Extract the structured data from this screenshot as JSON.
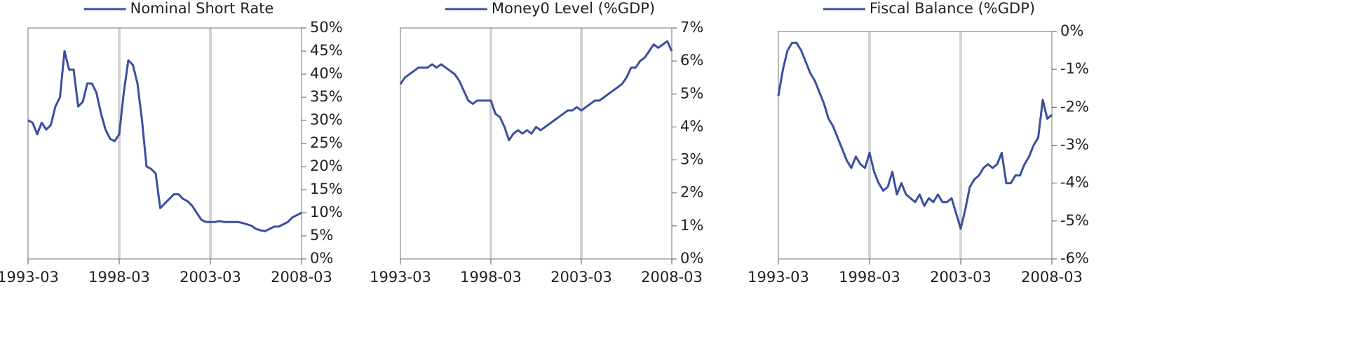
{
  "chart_data": [
    {
      "type": "line",
      "x": [
        "1993-03",
        "1993-06",
        "1993-09",
        "1993-12",
        "1994-03",
        "1994-06",
        "1994-09",
        "1994-12",
        "1995-03",
        "1995-06",
        "1995-09",
        "1995-12",
        "1996-03",
        "1996-06",
        "1996-09",
        "1996-12",
        "1997-03",
        "1997-06",
        "1997-09",
        "1997-12",
        "1998-03",
        "1998-06",
        "1998-09",
        "1998-12",
        "1999-03",
        "1999-06",
        "1999-09",
        "1999-12",
        "2000-03",
        "2000-06",
        "2000-09",
        "2000-12",
        "2001-03",
        "2001-06",
        "2001-09",
        "2001-12",
        "2002-03",
        "2002-06",
        "2002-09",
        "2002-12",
        "2003-03",
        "2003-06",
        "2003-09",
        "2003-12",
        "2004-03",
        "2004-06",
        "2004-09",
        "2004-12",
        "2005-03",
        "2005-06",
        "2005-09",
        "2005-12",
        "2006-03",
        "2006-06",
        "2006-09",
        "2006-12",
        "2007-03",
        "2007-06",
        "2007-09",
        "2007-12",
        "2008-03"
      ],
      "series": [
        {
          "name": "Nominal Short Rate",
          "color": "#3a4fa0",
          "values": [
            30,
            29.5,
            27,
            29.5,
            28,
            29,
            33,
            35,
            45,
            41,
            41,
            33,
            34,
            38,
            38,
            36,
            31.5,
            28,
            26,
            25.5,
            27,
            36,
            43,
            42,
            38,
            30,
            20,
            19.5,
            18.5,
            11,
            12,
            13,
            14,
            14,
            13,
            12.5,
            11.5,
            10,
            8.5,
            8,
            8,
            8,
            8.2,
            8,
            8,
            8,
            8,
            7.8,
            7.5,
            7.2,
            6.5,
            6.2,
            6,
            6.5,
            7,
            7,
            7.5,
            8,
            9,
            9.5,
            10
          ]
        }
      ],
      "xlim": [
        "1993-03",
        "2008-03"
      ],
      "xticks": [
        "1993-03",
        "1998-03",
        "2003-03",
        "2008-03"
      ],
      "reference_lines": [
        "1998-03",
        "2003-03"
      ],
      "ylim": [
        0,
        50
      ],
      "yticks": [
        {
          "value": 0,
          "label": "0%"
        },
        {
          "value": 5,
          "label": "5%"
        },
        {
          "value": 10,
          "label": "10%"
        },
        {
          "value": 15,
          "label": "15%"
        },
        {
          "value": 20,
          "label": "20%"
        },
        {
          "value": 25,
          "label": "25%"
        },
        {
          "value": 30,
          "label": "30%"
        },
        {
          "value": 35,
          "label": "35%"
        },
        {
          "value": 40,
          "label": "40%"
        },
        {
          "value": 45,
          "label": "45%"
        },
        {
          "value": 50,
          "label": "50%"
        }
      ]
    },
    {
      "type": "line",
      "x": [
        "1993-03",
        "1993-06",
        "1993-09",
        "1993-12",
        "1994-03",
        "1994-06",
        "1994-09",
        "1994-12",
        "1995-03",
        "1995-06",
        "1995-09",
        "1995-12",
        "1996-03",
        "1996-06",
        "1996-09",
        "1996-12",
        "1997-03",
        "1997-06",
        "1997-09",
        "1997-12",
        "1998-03",
        "1998-06",
        "1998-09",
        "1998-12",
        "1999-03",
        "1999-06",
        "1999-09",
        "1999-12",
        "2000-03",
        "2000-06",
        "2000-09",
        "2000-12",
        "2001-03",
        "2001-06",
        "2001-09",
        "2001-12",
        "2002-03",
        "2002-06",
        "2002-09",
        "2002-12",
        "2003-03",
        "2003-06",
        "2003-09",
        "2003-12",
        "2004-03",
        "2004-06",
        "2004-09",
        "2004-12",
        "2005-03",
        "2005-06",
        "2005-09",
        "2005-12",
        "2006-03",
        "2006-06",
        "2006-09",
        "2006-12",
        "2007-03",
        "2007-06",
        "2007-09",
        "2007-12",
        "2008-03"
      ],
      "series": [
        {
          "name": "Money0 Level (%GDP)",
          "color": "#3a4fa0",
          "values": [
            5.3,
            5.5,
            5.6,
            5.7,
            5.8,
            5.8,
            5.8,
            5.9,
            5.8,
            5.9,
            5.8,
            5.7,
            5.6,
            5.4,
            5.1,
            4.8,
            4.7,
            4.8,
            4.8,
            4.8,
            4.8,
            4.4,
            4.3,
            4.0,
            3.6,
            3.8,
            3.9,
            3.8,
            3.9,
            3.8,
            4.0,
            3.9,
            4.0,
            4.1,
            4.2,
            4.3,
            4.4,
            4.5,
            4.5,
            4.6,
            4.5,
            4.6,
            4.7,
            4.8,
            4.8,
            4.9,
            5.0,
            5.1,
            5.2,
            5.3,
            5.5,
            5.8,
            5.8,
            6.0,
            6.1,
            6.3,
            6.5,
            6.4,
            6.5,
            6.6,
            6.3
          ]
        }
      ],
      "xlim": [
        "1993-03",
        "2008-03"
      ],
      "xticks": [
        "1993-03",
        "1998-03",
        "2003-03",
        "2008-03"
      ],
      "reference_lines": [
        "1998-03",
        "2003-03"
      ],
      "ylim": [
        0,
        7
      ],
      "yticks": [
        {
          "value": 0,
          "label": "0%"
        },
        {
          "value": 1,
          "label": "1%"
        },
        {
          "value": 2,
          "label": "2%"
        },
        {
          "value": 3,
          "label": "3%"
        },
        {
          "value": 4,
          "label": "4%"
        },
        {
          "value": 5,
          "label": "5%"
        },
        {
          "value": 6,
          "label": "6%"
        },
        {
          "value": 7,
          "label": "7%"
        }
      ]
    },
    {
      "type": "line",
      "x": [
        "1993-03",
        "1993-06",
        "1993-09",
        "1993-12",
        "1994-03",
        "1994-06",
        "1994-09",
        "1994-12",
        "1995-03",
        "1995-06",
        "1995-09",
        "1995-12",
        "1996-03",
        "1996-06",
        "1996-09",
        "1996-12",
        "1997-03",
        "1997-06",
        "1997-09",
        "1997-12",
        "1998-03",
        "1998-06",
        "1998-09",
        "1998-12",
        "1999-03",
        "1999-06",
        "1999-09",
        "1999-12",
        "2000-03",
        "2000-06",
        "2000-09",
        "2000-12",
        "2001-03",
        "2001-06",
        "2001-09",
        "2001-12",
        "2002-03",
        "2002-06",
        "2002-09",
        "2002-12",
        "2003-03",
        "2003-06",
        "2003-09",
        "2003-12",
        "2004-03",
        "2004-06",
        "2004-09",
        "2004-12",
        "2005-03",
        "2005-06",
        "2005-09",
        "2005-12",
        "2006-03",
        "2006-06",
        "2006-09",
        "2006-12",
        "2007-03",
        "2007-06",
        "2007-09",
        "2007-12",
        "2008-03"
      ],
      "series": [
        {
          "name": "Fiscal Balance (%GDP)",
          "color": "#3a4fa0",
          "values": [
            -1.7,
            -1.0,
            -0.5,
            -0.3,
            -0.3,
            -0.5,
            -0.8,
            -1.1,
            -1.3,
            -1.6,
            -1.9,
            -2.3,
            -2.5,
            -2.8,
            -3.1,
            -3.4,
            -3.6,
            -3.3,
            -3.5,
            -3.6,
            -3.2,
            -3.7,
            -4.0,
            -4.2,
            -4.1,
            -3.7,
            -4.3,
            -4.0,
            -4.3,
            -4.4,
            -4.5,
            -4.3,
            -4.6,
            -4.4,
            -4.5,
            -4.3,
            -4.5,
            -4.5,
            -4.4,
            -4.8,
            -5.2,
            -4.7,
            -4.1,
            -3.9,
            -3.8,
            -3.6,
            -3.5,
            -3.6,
            -3.5,
            -3.2,
            -4.0,
            -4.0,
            -3.8,
            -3.8,
            -3.5,
            -3.3,
            -3.0,
            -2.8,
            -1.8,
            -2.3,
            -2.2
          ]
        }
      ],
      "xlim": [
        "1993-03",
        "2008-03"
      ],
      "xticks": [
        "1993-03",
        "1998-03",
        "2003-03",
        "2008-03"
      ],
      "reference_lines": [
        "1998-03",
        "2003-03"
      ],
      "ylim": [
        -6,
        0
      ],
      "yticks": [
        {
          "value": -6,
          "label": "-6%"
        },
        {
          "value": -5,
          "label": "-5%"
        },
        {
          "value": -4,
          "label": "-4%"
        },
        {
          "value": -3,
          "label": "-3%"
        },
        {
          "value": -2,
          "label": "-2%"
        },
        {
          "value": -1,
          "label": "-1%"
        },
        {
          "value": 0,
          "label": "0%"
        }
      ]
    }
  ]
}
